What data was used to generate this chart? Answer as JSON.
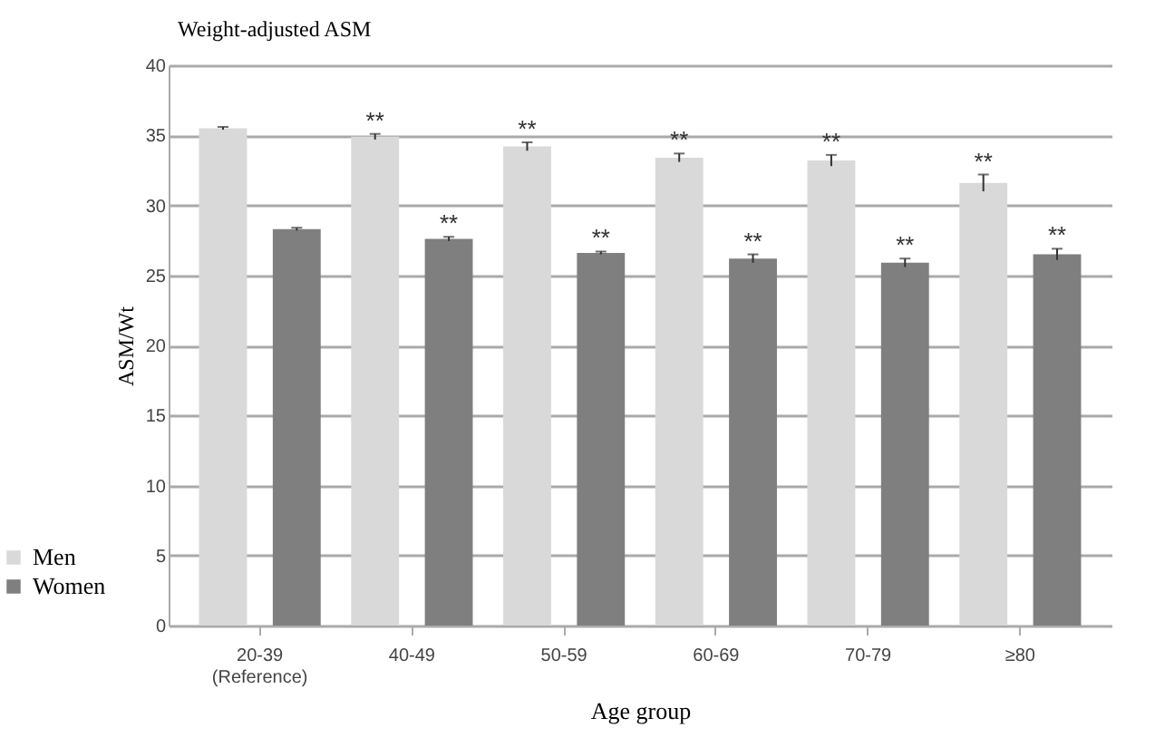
{
  "chart_data": {
    "type": "bar",
    "title": "Weight-adjusted ASM",
    "xlabel": "Age group",
    "ylabel": "ASM/Wt",
    "categories": [
      "20-39\n(Reference)",
      "40-49",
      "50-59",
      "60-69",
      "70-79",
      "≥80"
    ],
    "series": [
      {
        "name": "Men",
        "color": "#d9d9d9",
        "values": [
          35.5,
          34.9,
          34.2,
          33.4,
          33.2,
          31.6
        ],
        "errors": [
          0.1,
          0.2,
          0.3,
          0.3,
          0.4,
          0.6
        ],
        "value_labels": [
          null,
          "**",
          "**",
          "**",
          "**",
          "**"
        ]
      },
      {
        "name": "Women",
        "color": "#7f7f7f",
        "values": [
          28.3,
          27.6,
          26.6,
          26.2,
          25.9,
          26.5
        ],
        "errors": [
          0.1,
          0.15,
          0.1,
          0.3,
          0.3,
          0.4
        ],
        "value_labels": [
          null,
          "**",
          "**",
          "**",
          "**",
          "**"
        ]
      }
    ],
    "ylim": [
      0,
      40
    ],
    "yticks": [
      0,
      5,
      10,
      15,
      20,
      25,
      30,
      35,
      40
    ],
    "grid": "y",
    "legend": "bottom left"
  }
}
